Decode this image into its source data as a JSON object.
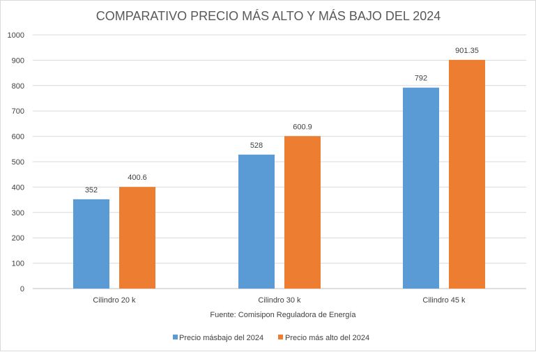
{
  "chart_data": {
    "type": "bar",
    "title": "COMPARATIVO PRECIO MÁS ALTO Y MÁS BAJO DEL 2024",
    "categories": [
      "Cilindro 20 k",
      "Cilindro 30 k",
      "Cilindro 45 k"
    ],
    "series": [
      {
        "name": "Precio másbajo del 2024",
        "values": [
          352,
          528,
          792
        ],
        "labels": [
          "352",
          "528",
          "792"
        ],
        "color": "#5b9bd5"
      },
      {
        "name": "Precio más alto del 2024",
        "values": [
          400.6,
          600.9,
          901.35
        ],
        "labels": [
          "400.6",
          "600.9",
          "901.35"
        ],
        "color": "#ed7d31"
      }
    ],
    "ylim": [
      0,
      1000
    ],
    "yticks": [
      "0",
      "100",
      "200",
      "300",
      "400",
      "500",
      "600",
      "700",
      "800",
      "900",
      "1000"
    ],
    "source_note": "Fuente:  Comisipon Reguladora de Energía",
    "grid": true,
    "legend_position": "bottom"
  }
}
